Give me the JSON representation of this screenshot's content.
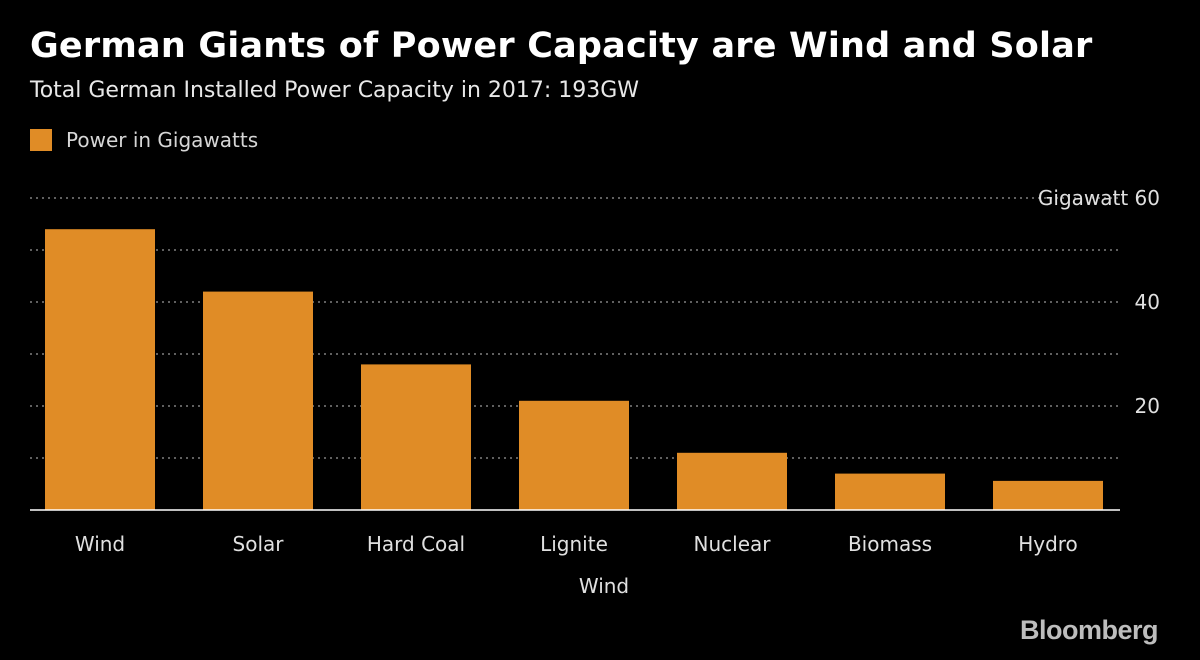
{
  "colors": {
    "background": "#000000",
    "bar": "#e08c26",
    "grid": "#808080",
    "text": "#e0e0e0"
  },
  "chart_data": {
    "type": "bar",
    "title": "German Giants of Power Capacity are Wind and Solar",
    "subtitle": "Total German Installed Power Capacity in 2017: 193GW",
    "categories": [
      "Wind",
      "Solar",
      "Hard Coal",
      "Lignite",
      "Nuclear",
      "Biomass",
      "Hydro"
    ],
    "series": [
      {
        "name": "Power in Gigawatts",
        "values": [
          54,
          42,
          28,
          21,
          11,
          7,
          5.6
        ]
      }
    ],
    "xlabel": "Wind",
    "ylabel": "Gigawatt",
    "ylim": [
      0,
      60
    ],
    "yticks": [
      20,
      40,
      60
    ],
    "ytick_labels": [
      "20",
      "40",
      "Gigawatt 60"
    ],
    "grid": true,
    "legend_position": "top-left"
  },
  "branding": {
    "logo_text": "Bloomberg"
  }
}
